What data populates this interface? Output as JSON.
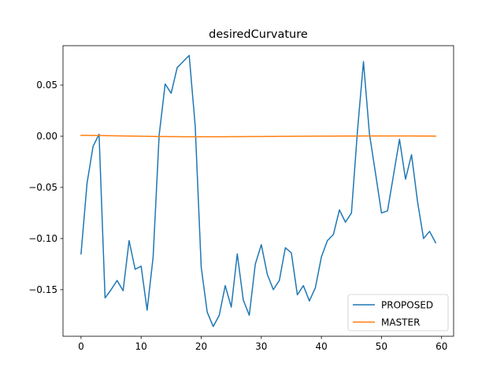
{
  "chart_data": {
    "type": "line",
    "title": "desiredCurvature",
    "xlabel": "",
    "ylabel": "",
    "xlim": [
      -3.0,
      62.0
    ],
    "ylim": [
      -0.1955,
      0.0885
    ],
    "xticks": [
      0,
      10,
      20,
      30,
      40,
      50,
      60
    ],
    "xtick_labels": [
      "0",
      "10",
      "20",
      "30",
      "40",
      "50",
      "60"
    ],
    "yticks": [
      0.05,
      0.0,
      -0.05,
      -0.1,
      -0.15
    ],
    "ytick_labels": [
      "0.05",
      "0.00",
      "−0.05",
      "−0.10",
      "−0.15"
    ],
    "legend_position": "lower-right",
    "grid": false,
    "x": [
      0,
      1,
      2,
      3,
      4,
      5,
      6,
      7,
      8,
      9,
      10,
      11,
      12,
      13,
      14,
      15,
      16,
      17,
      18,
      19,
      20,
      21,
      22,
      23,
      24,
      25,
      26,
      27,
      28,
      29,
      30,
      31,
      32,
      33,
      34,
      35,
      36,
      37,
      38,
      39,
      40,
      41,
      42,
      43,
      44,
      45,
      46,
      47,
      48,
      49,
      50,
      51,
      52,
      53,
      54,
      55,
      56,
      57,
      58,
      59
    ],
    "series": [
      {
        "name": "PROPOSED",
        "color": "#1f77b4",
        "values": [
          -0.115,
          -0.046,
          -0.01,
          0.002,
          -0.158,
          -0.15,
          -0.141,
          -0.151,
          -0.102,
          -0.13,
          -0.127,
          -0.17,
          -0.118,
          0.001,
          0.051,
          0.042,
          0.067,
          0.073,
          0.079,
          0.01,
          -0.128,
          -0.172,
          -0.186,
          -0.175,
          -0.146,
          -0.167,
          -0.115,
          -0.16,
          -0.175,
          -0.125,
          -0.106,
          -0.135,
          -0.15,
          -0.141,
          -0.109,
          -0.114,
          -0.155,
          -0.146,
          -0.161,
          -0.148,
          -0.118,
          -0.102,
          -0.096,
          -0.072,
          -0.084,
          -0.075,
          0.005,
          0.073,
          0.002,
          -0.036,
          -0.075,
          -0.073,
          -0.038,
          -0.003,
          -0.042,
          -0.018,
          -0.064,
          -0.1,
          -0.093,
          -0.104
        ]
      },
      {
        "name": "MASTER",
        "color": "#ff7f0e",
        "values": [
          0.0009,
          0.0009,
          0.0008,
          0.0007,
          0.0006,
          0.0005,
          0.0004,
          0.0003,
          0.0002,
          0.0001,
          0.0,
          -0.0001,
          -0.0002,
          -0.0003,
          -0.0003,
          -0.0004,
          -0.0004,
          -0.0005,
          -0.0005,
          -0.0005,
          -0.0005,
          -0.0005,
          -0.0005,
          -0.0005,
          -0.0005,
          -0.0004,
          -0.0004,
          -0.0004,
          -0.0003,
          -0.0003,
          -0.0003,
          -0.0002,
          -0.0002,
          -0.0001,
          -0.0001,
          -0.0001,
          0.0,
          0.0,
          0.0,
          0.0001,
          0.0001,
          0.0001,
          0.0001,
          0.0002,
          0.0002,
          0.0002,
          0.0002,
          0.0003,
          0.0003,
          0.0003,
          0.0003,
          0.0003,
          0.0003,
          0.0003,
          0.0003,
          0.0003,
          0.0002,
          0.0002,
          0.0002,
          0.0001
        ]
      }
    ]
  }
}
